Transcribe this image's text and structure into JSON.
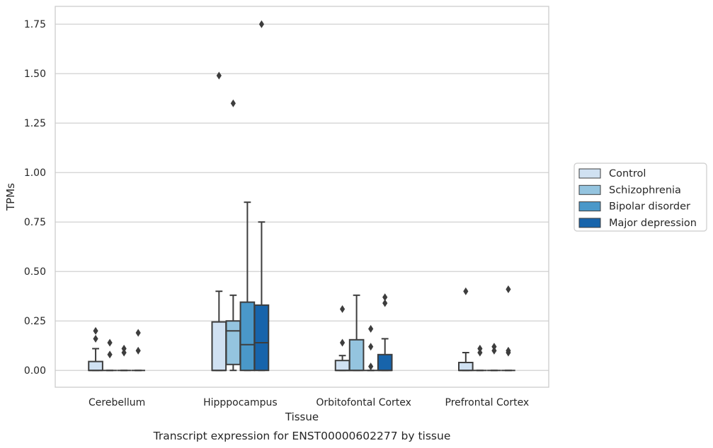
{
  "chart_data": {
    "type": "box",
    "caption": "Transcript expression for ENST00000602277 by tissue",
    "xlabel": "Tissue",
    "ylabel": "TPMs",
    "ylim": [
      -0.085,
      1.84
    ],
    "yticks": [
      0.0,
      0.25,
      0.5,
      0.75,
      1.0,
      1.25,
      1.5,
      1.75
    ],
    "ytick_labels": [
      "0.00",
      "0.25",
      "0.50",
      "0.75",
      "1.00",
      "1.25",
      "1.50",
      "1.75"
    ],
    "grid": true,
    "legend_position": "right",
    "categories": [
      "Cerebellum",
      "Hipppocampus",
      "Orbitofontal Cortex",
      "Prefrontal Cortex"
    ],
    "series": [
      {
        "name": "Control",
        "color": "#d0e1f2",
        "boxes": [
          {
            "low": 0.0,
            "q1": 0.0,
            "median": 0.0,
            "q3": 0.045,
            "high": 0.11,
            "outliers": [
              0.16,
              0.2
            ]
          },
          {
            "low": 0.0,
            "q1": 0.0,
            "median": 0.0,
            "q3": 0.245,
            "high": 0.4,
            "outliers": [
              1.49
            ]
          },
          {
            "low": 0.0,
            "q1": 0.0,
            "median": 0.0,
            "q3": 0.05,
            "high": 0.075,
            "outliers": [
              0.14,
              0.31
            ]
          },
          {
            "low": 0.0,
            "q1": 0.0,
            "median": 0.0,
            "q3": 0.04,
            "high": 0.09,
            "outliers": [
              0.4
            ]
          }
        ]
      },
      {
        "name": "Schizophrenia",
        "color": "#94c4df",
        "boxes": [
          {
            "low": 0.0,
            "q1": 0.0,
            "median": 0.0,
            "q3": 0.0,
            "high": 0.0,
            "outliers": [
              0.08,
              0.14
            ]
          },
          {
            "low": 0.0,
            "q1": 0.03,
            "median": 0.2,
            "q3": 0.25,
            "high": 0.38,
            "outliers": [
              1.35
            ]
          },
          {
            "low": 0.0,
            "q1": 0.0,
            "median": 0.0,
            "q3": 0.155,
            "high": 0.38,
            "outliers": []
          },
          {
            "low": 0.0,
            "q1": 0.0,
            "median": 0.0,
            "q3": 0.0,
            "high": 0.0,
            "outliers": [
              0.09,
              0.11
            ]
          }
        ]
      },
      {
        "name": "Bipolar disorder",
        "color": "#4a98c9",
        "boxes": [
          {
            "low": 0.0,
            "q1": 0.0,
            "median": 0.0,
            "q3": 0.0,
            "high": 0.0,
            "outliers": [
              0.09,
              0.11
            ]
          },
          {
            "low": 0.0,
            "q1": 0.0,
            "median": 0.13,
            "q3": 0.345,
            "high": 0.85,
            "outliers": []
          },
          {
            "low": 0.0,
            "q1": 0.0,
            "median": 0.0,
            "q3": 0.0,
            "high": 0.0,
            "outliers": [
              0.02,
              0.12,
              0.21
            ]
          },
          {
            "low": 0.0,
            "q1": 0.0,
            "median": 0.0,
            "q3": 0.0,
            "high": 0.0,
            "outliers": [
              0.1,
              0.12
            ]
          }
        ]
      },
      {
        "name": "Major depression",
        "color": "#1764ab",
        "boxes": [
          {
            "low": 0.0,
            "q1": 0.0,
            "median": 0.0,
            "q3": 0.0,
            "high": 0.0,
            "outliers": [
              0.1,
              0.19
            ]
          },
          {
            "low": 0.0,
            "q1": 0.0,
            "median": 0.14,
            "q3": 0.33,
            "high": 0.75,
            "outliers": [
              1.75
            ]
          },
          {
            "low": 0.0,
            "q1": 0.0,
            "median": 0.0,
            "q3": 0.08,
            "high": 0.16,
            "outliers": [
              0.34,
              0.37
            ]
          },
          {
            "low": 0.0,
            "q1": 0.0,
            "median": 0.0,
            "q3": 0.0,
            "high": 0.0,
            "outliers": [
              0.09,
              0.1,
              0.41
            ]
          }
        ]
      }
    ]
  }
}
